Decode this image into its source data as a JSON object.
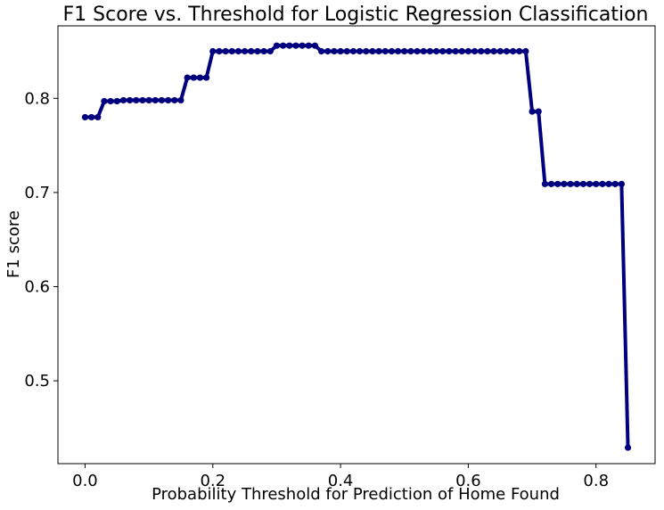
{
  "chart_data": {
    "type": "line",
    "title": "F1 Score vs. Threshold for Logistic Regression Classification",
    "xlabel": "Probability Threshold for Prediction of Home Found",
    "ylabel": "F1 score",
    "xlim": [
      -0.0425,
      0.8925
    ],
    "ylim": [
      0.412,
      0.877
    ],
    "xticks": [
      0.0,
      0.2,
      0.4,
      0.6,
      0.8
    ],
    "xtick_labels": [
      "0.0",
      "0.2",
      "0.4",
      "0.6",
      "0.8"
    ],
    "yticks": [
      0.5,
      0.6,
      0.7,
      0.8
    ],
    "ytick_labels": [
      "0.5",
      "0.6",
      "0.7",
      "0.8"
    ],
    "grid": false,
    "colors": {
      "line": "#00007f",
      "marker": "#00007f"
    },
    "series": [
      {
        "x": [
          0.0,
          0.01,
          0.02,
          0.03,
          0.04,
          0.05,
          0.06,
          0.07,
          0.08,
          0.09,
          0.1,
          0.11,
          0.12,
          0.13,
          0.14,
          0.15,
          0.16,
          0.17,
          0.18,
          0.19,
          0.2,
          0.21,
          0.22,
          0.23,
          0.24,
          0.25,
          0.26,
          0.27,
          0.28,
          0.29,
          0.3,
          0.31,
          0.32,
          0.33,
          0.34,
          0.35,
          0.36,
          0.37,
          0.38,
          0.39,
          0.4,
          0.41,
          0.42,
          0.43,
          0.44,
          0.45,
          0.46,
          0.47,
          0.48,
          0.49,
          0.5,
          0.51,
          0.52,
          0.53,
          0.54,
          0.55,
          0.56,
          0.57,
          0.58,
          0.59,
          0.6,
          0.61,
          0.62,
          0.63,
          0.64,
          0.65,
          0.66,
          0.67,
          0.68,
          0.69,
          0.7,
          0.71,
          0.72,
          0.73,
          0.74,
          0.75,
          0.76,
          0.77,
          0.78,
          0.79,
          0.8,
          0.81,
          0.82,
          0.83,
          0.84,
          0.85
        ],
        "y": [
          0.78,
          0.78,
          0.78,
          0.797,
          0.797,
          0.797,
          0.798,
          0.798,
          0.798,
          0.798,
          0.798,
          0.798,
          0.798,
          0.798,
          0.798,
          0.798,
          0.822,
          0.822,
          0.822,
          0.822,
          0.85,
          0.85,
          0.85,
          0.85,
          0.85,
          0.85,
          0.85,
          0.85,
          0.85,
          0.85,
          0.856,
          0.856,
          0.856,
          0.856,
          0.856,
          0.856,
          0.856,
          0.85,
          0.85,
          0.85,
          0.85,
          0.85,
          0.85,
          0.85,
          0.85,
          0.85,
          0.85,
          0.85,
          0.85,
          0.85,
          0.85,
          0.85,
          0.85,
          0.85,
          0.85,
          0.85,
          0.85,
          0.85,
          0.85,
          0.85,
          0.85,
          0.85,
          0.85,
          0.85,
          0.85,
          0.85,
          0.85,
          0.85,
          0.85,
          0.85,
          0.786,
          0.786,
          0.709,
          0.709,
          0.709,
          0.709,
          0.709,
          0.709,
          0.709,
          0.709,
          0.709,
          0.709,
          0.709,
          0.709,
          0.709,
          0.429
        ]
      }
    ]
  }
}
